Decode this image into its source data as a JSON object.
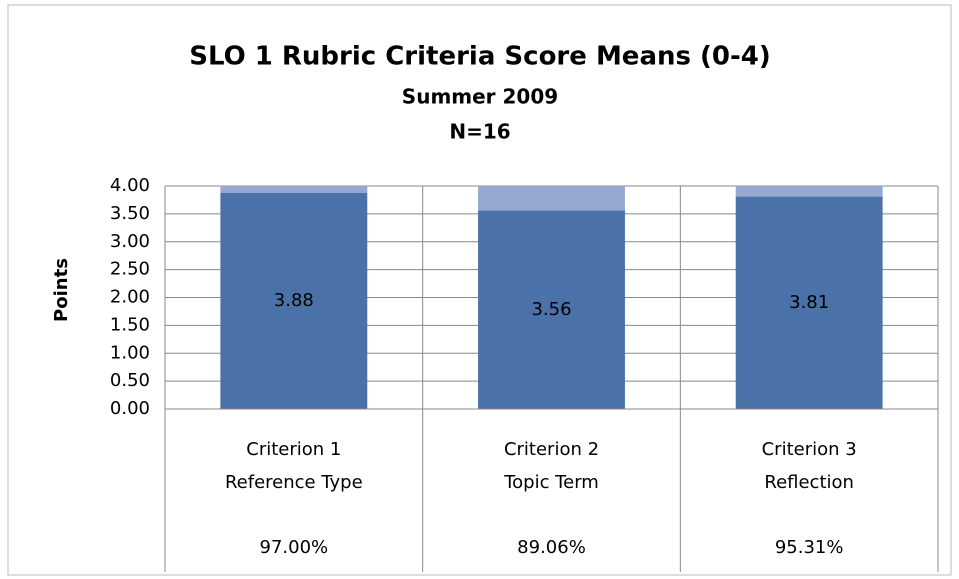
{
  "chart_data": {
    "type": "stacked_bar",
    "title": "SLO 1 Rubric Criteria Score Means (0-4)",
    "subtitle": [
      "Summer 2009",
      "N=16"
    ],
    "y_label": "Points",
    "categories": [
      [
        "Criterion 1",
        "Reference Type"
      ],
      [
        "Criterion 2",
        "Topic Term"
      ],
      [
        "Criterion 3",
        "Reflection"
      ]
    ],
    "percentages": [
      "97.00%",
      "89.06%",
      "95.31%"
    ],
    "series": [
      {
        "color": "#4a72a8",
        "values": [
          3.88,
          3.56,
          3.81
        ],
        "show_labels": true
      },
      {
        "color": "#95a8d2",
        "values": [
          0.12,
          0.44,
          0.19
        ],
        "show_labels": false
      }
    ],
    "ylim": [
      0,
      4
    ],
    "yticks": [
      {
        "value": 0,
        "label": "0.00"
      },
      {
        "value": 0.5,
        "label": "0.50"
      },
      {
        "value": 1,
        "label": "1.00"
      },
      {
        "value": 1.5,
        "label": "1.50"
      },
      {
        "value": 2,
        "label": "2.00"
      },
      {
        "value": 2.5,
        "label": "2.50"
      },
      {
        "value": 3,
        "label": "3.00"
      },
      {
        "value": 3.5,
        "label": "3.50"
      },
      {
        "value": 4,
        "label": "4.00"
      }
    ],
    "grid": true
  }
}
